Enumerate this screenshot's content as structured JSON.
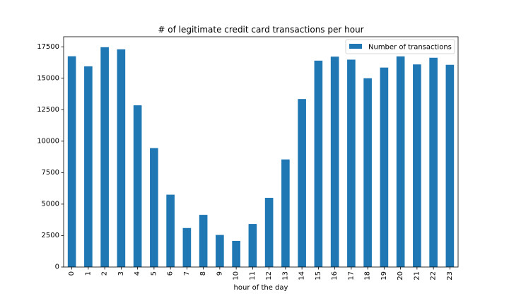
{
  "chart_data": {
    "type": "bar",
    "title": "# of legitimate credit card transactions per hour",
    "xlabel": "hour of the day",
    "ylabel": "",
    "categories": [
      "0",
      "1",
      "2",
      "3",
      "4",
      "5",
      "6",
      "7",
      "8",
      "9",
      "10",
      "11",
      "12",
      "13",
      "14",
      "15",
      "16",
      "17",
      "18",
      "19",
      "20",
      "21",
      "22",
      "23"
    ],
    "series": [
      {
        "name": "Number of transactions",
        "values": [
          16750,
          15950,
          17470,
          17300,
          12850,
          9450,
          5750,
          3100,
          4150,
          2550,
          2080,
          3420,
          5500,
          8550,
          13350,
          16400,
          16720,
          16480,
          15000,
          15850,
          16740,
          16100,
          16630,
          16070
        ]
      }
    ],
    "ylim": [
      0,
      18300
    ],
    "yticks": [
      0,
      2500,
      5000,
      7500,
      10000,
      12500,
      15000,
      17500
    ],
    "ytick_labels": [
      "0",
      "2500",
      "5000",
      "7500",
      "10000",
      "12500",
      "15000",
      "17500"
    ],
    "grid": false,
    "legend_position": "top-right",
    "bar_color": "#1f77b4",
    "x_tick_rotation": "vertical"
  }
}
